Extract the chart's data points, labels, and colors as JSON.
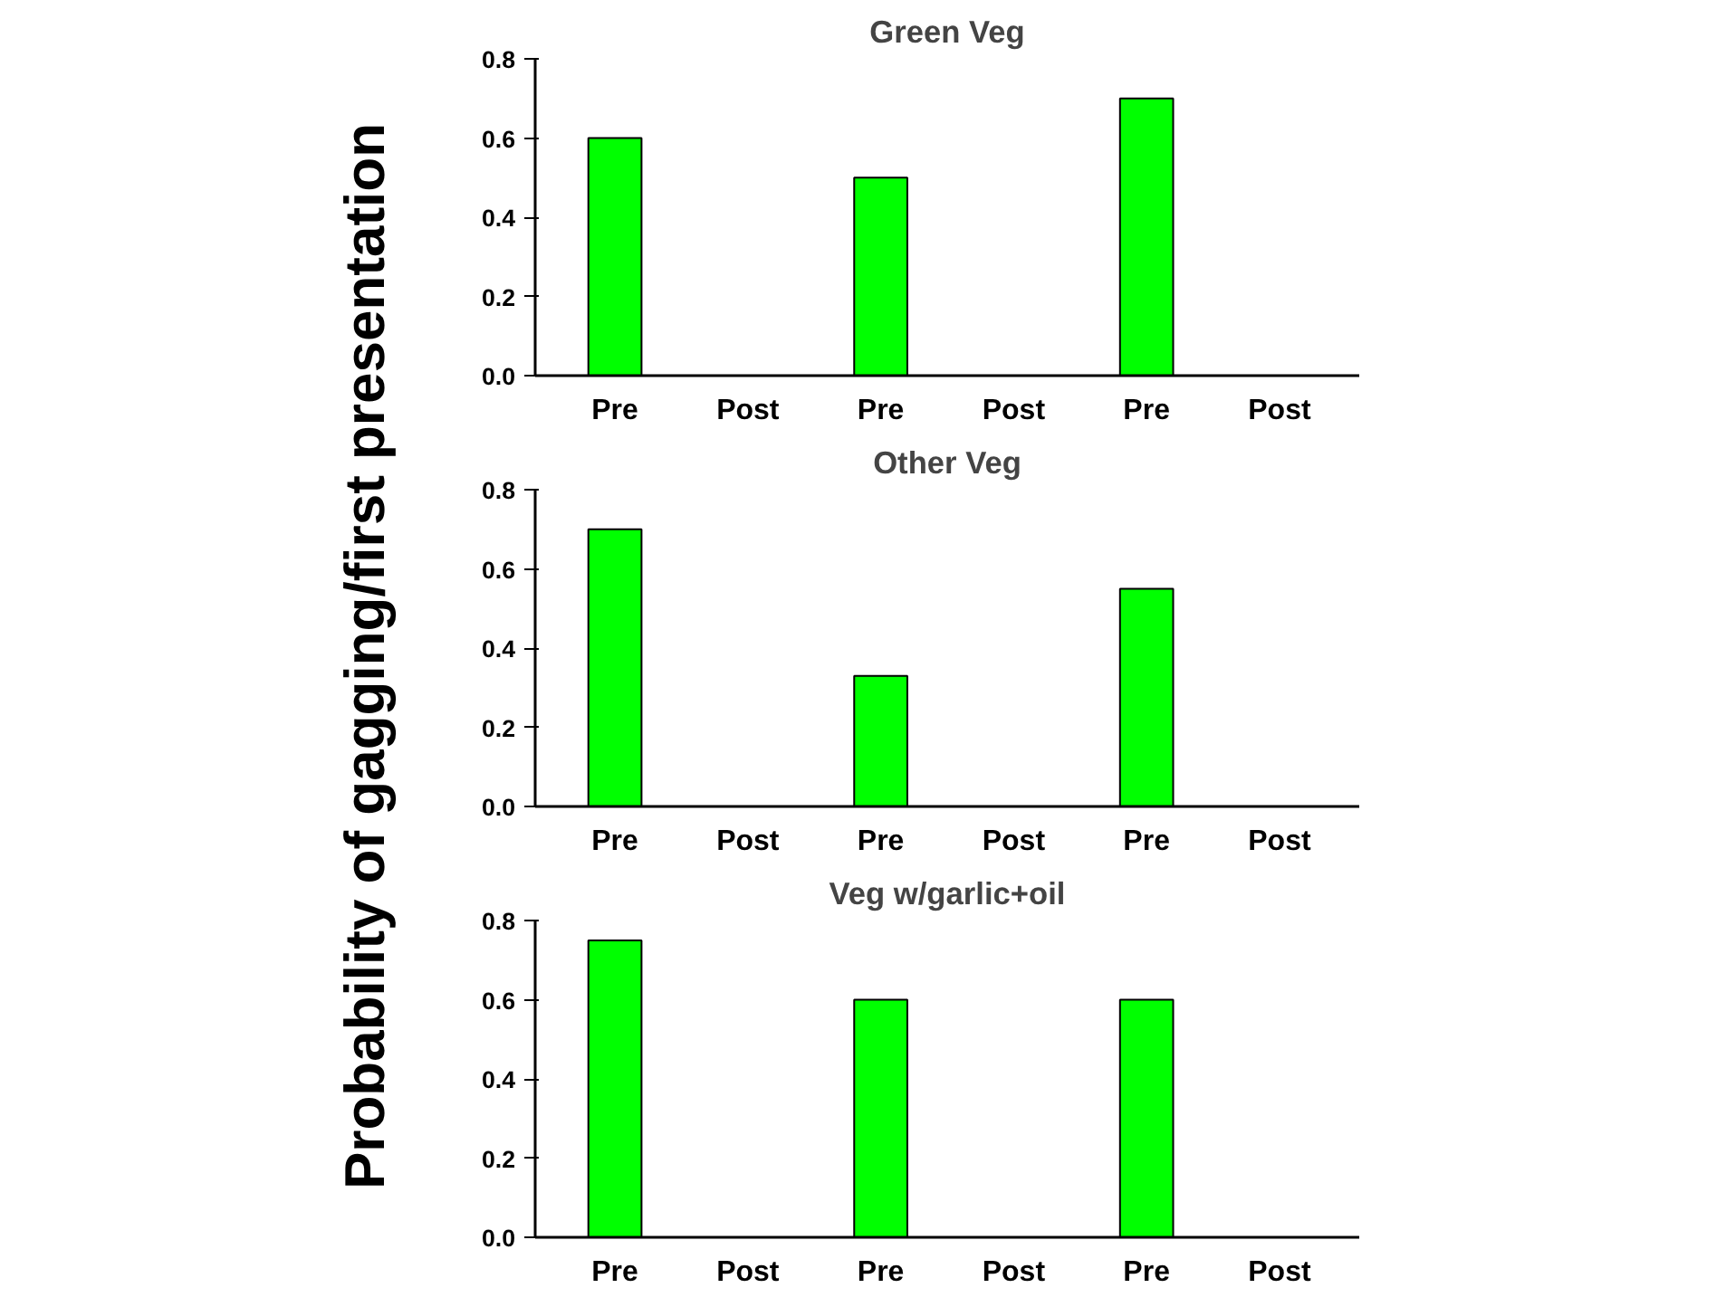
{
  "chart_data": [
    {
      "type": "bar",
      "title": "Green Veg",
      "categories": [
        "Pre",
        "Post",
        "Pre",
        "Post",
        "Pre",
        "Post"
      ],
      "values": [
        0.6,
        0,
        0.5,
        0,
        0.7,
        0
      ],
      "color": "#00ff00",
      "ylim": [
        0,
        0.8
      ],
      "yticks": [
        {
          "value": 0,
          "label": "0.0"
        },
        {
          "value": 0.2,
          "label": "0.2"
        },
        {
          "value": 0.4,
          "label": "0.4"
        },
        {
          "value": 0.6,
          "label": "0.6"
        },
        {
          "value": 0.8,
          "label": "0.8"
        }
      ],
      "grid": false
    },
    {
      "type": "bar",
      "title": "Other Veg",
      "ylabel": "Probability of gagging/first presentation",
      "categories": [
        "Pre",
        "Post",
        "Pre",
        "Post",
        "Pre",
        "Post"
      ],
      "values": [
        0.7,
        0,
        0.33,
        0,
        0.55,
        0
      ],
      "color": "#00ff00",
      "ylim": [
        0,
        0.8
      ],
      "yticks": [
        {
          "value": 0,
          "label": "0.0"
        },
        {
          "value": 0.2,
          "label": "0.2"
        },
        {
          "value": 0.4,
          "label": "0.4"
        },
        {
          "value": 0.6,
          "label": "0.6"
        },
        {
          "value": 0.8,
          "label": "0.8"
        }
      ],
      "grid": false
    },
    {
      "type": "bar",
      "title": "Veg w/garlic+oil",
      "categories": [
        "Pre",
        "Post",
        "Pre",
        "Post",
        "Pre",
        "Post"
      ],
      "values": [
        0.75,
        0,
        0.6,
        0,
        0.6,
        0
      ],
      "color": "#00ff00",
      "ylim": [
        0,
        0.8
      ],
      "yticks": [
        {
          "value": 0,
          "label": "0.0"
        },
        {
          "value": 0.2,
          "label": "0.2"
        },
        {
          "value": 0.4,
          "label": "0.4"
        },
        {
          "value": 0.6,
          "label": "0.6"
        },
        {
          "value": 0.8,
          "label": "0.8"
        }
      ],
      "grid": false
    }
  ]
}
